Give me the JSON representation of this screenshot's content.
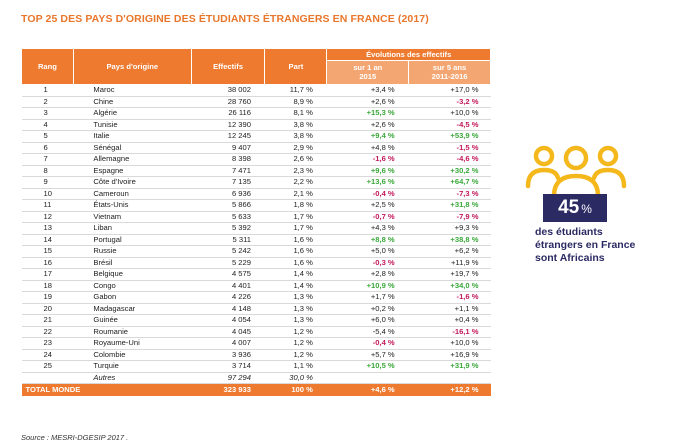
{
  "title": "TOP 25 DES PAYS D'ORIGINE DES ÉTUDIANTS ÉTRANGERS EN FRANCE (2017)",
  "headers": {
    "rang": "Rang",
    "pays": "Pays d'origine",
    "effectifs": "Effectifs",
    "part": "Part",
    "evolutions": "Évolutions des effectifs",
    "ev1_l1": "sur 1 an",
    "ev1_l2": "2015",
    "ev5_l1": "sur 5 ans",
    "ev5_l2": "2011-2016"
  },
  "rows": [
    {
      "rang": "1",
      "pays": "Maroc",
      "effectifs": "38 002",
      "part": "11,7 %",
      "ev1": "+3,4 %",
      "ev1_c": "plain",
      "ev5": "+17,0 %",
      "ev5_c": "plain"
    },
    {
      "rang": "2",
      "pays": "Chine",
      "effectifs": "28 760",
      "part": "8,9 %",
      "ev1": "+2,6 %",
      "ev1_c": "plain",
      "ev5": "-3,2 %",
      "ev5_c": "red"
    },
    {
      "rang": "3",
      "pays": "Algérie",
      "effectifs": "26 116",
      "part": "8,1 %",
      "ev1": "+15,3 %",
      "ev1_c": "green",
      "ev5": "+10,0 %",
      "ev5_c": "plain"
    },
    {
      "rang": "4",
      "pays": "Tunisie",
      "effectifs": "12 390",
      "part": "3,8 %",
      "ev1": "+2,6 %",
      "ev1_c": "plain",
      "ev5": "-4,5 %",
      "ev5_c": "red"
    },
    {
      "rang": "5",
      "pays": "Italie",
      "effectifs": "12 245",
      "part": "3,8 %",
      "ev1": "+9,4 %",
      "ev1_c": "green",
      "ev5": "+53,9 %",
      "ev5_c": "green"
    },
    {
      "rang": "6",
      "pays": "Sénégal",
      "effectifs": "9 407",
      "part": "2,9 %",
      "ev1": "+4,8 %",
      "ev1_c": "plain",
      "ev5": "-1,5 %",
      "ev5_c": "red"
    },
    {
      "rang": "7",
      "pays": "Allemagne",
      "effectifs": "8 398",
      "part": "2,6 %",
      "ev1": "-1,6 %",
      "ev1_c": "red",
      "ev5": "-4,6 %",
      "ev5_c": "red"
    },
    {
      "rang": "8",
      "pays": "Espagne",
      "effectifs": "7 471",
      "part": "2,3 %",
      "ev1": "+9,6 %",
      "ev1_c": "green",
      "ev5": "+30,2 %",
      "ev5_c": "green"
    },
    {
      "rang": "9",
      "pays": "Côte d'Ivoire",
      "effectifs": "7 135",
      "part": "2,2 %",
      "ev1": "+13,6 %",
      "ev1_c": "green",
      "ev5": "+64,7 %",
      "ev5_c": "green"
    },
    {
      "rang": "10",
      "pays": "Cameroun",
      "effectifs": "6 936",
      "part": "2,1 %",
      "ev1": "-0,4 %",
      "ev1_c": "red",
      "ev5": "-7,3 %",
      "ev5_c": "red"
    },
    {
      "rang": "11",
      "pays": "États-Unis",
      "effectifs": "5 866",
      "part": "1,8 %",
      "ev1": "+2,5 %",
      "ev1_c": "plain",
      "ev5": "+31,8 %",
      "ev5_c": "green"
    },
    {
      "rang": "12",
      "pays": "Vietnam",
      "effectifs": "5 633",
      "part": "1,7 %",
      "ev1": "-0,7 %",
      "ev1_c": "red",
      "ev5": "-7,9 %",
      "ev5_c": "red"
    },
    {
      "rang": "13",
      "pays": "Liban",
      "effectifs": "5 392",
      "part": "1,7 %",
      "ev1": "+4,3 %",
      "ev1_c": "plain",
      "ev5": "+9,3 %",
      "ev5_c": "plain"
    },
    {
      "rang": "14",
      "pays": "Portugal",
      "effectifs": "5 311",
      "part": "1,6 %",
      "ev1": "+8,8 %",
      "ev1_c": "green",
      "ev5": "+38,8 %",
      "ev5_c": "green"
    },
    {
      "rang": "15",
      "pays": "Russie",
      "effectifs": "5 242",
      "part": "1,6 %",
      "ev1": "+5,0 %",
      "ev1_c": "plain",
      "ev5": "+6,2 %",
      "ev5_c": "plain"
    },
    {
      "rang": "16",
      "pays": "Brésil",
      "effectifs": "5 229",
      "part": "1,6 %",
      "ev1": "-0,3 %",
      "ev1_c": "red",
      "ev5": "+11,9 %",
      "ev5_c": "plain"
    },
    {
      "rang": "17",
      "pays": "Belgique",
      "effectifs": "4 575",
      "part": "1,4 %",
      "ev1": "+2,8 %",
      "ev1_c": "plain",
      "ev5": "+19,7 %",
      "ev5_c": "plain"
    },
    {
      "rang": "18",
      "pays": "Congo",
      "effectifs": "4 401",
      "part": "1,4 %",
      "ev1": "+10,9 %",
      "ev1_c": "green",
      "ev5": "+34,0 %",
      "ev5_c": "green"
    },
    {
      "rang": "19",
      "pays": "Gabon",
      "effectifs": "4 226",
      "part": "1,3 %",
      "ev1": "+1,7 %",
      "ev1_c": "plain",
      "ev5": "-1,6 %",
      "ev5_c": "red"
    },
    {
      "rang": "20",
      "pays": "Madagascar",
      "effectifs": "4 148",
      "part": "1,3 %",
      "ev1": "+0,2 %",
      "ev1_c": "plain",
      "ev5": "+1,1 %",
      "ev5_c": "plain"
    },
    {
      "rang": "21",
      "pays": "Guinée",
      "effectifs": "4 054",
      "part": "1,3 %",
      "ev1": "+6,0 %",
      "ev1_c": "plain",
      "ev5": "+0,4 %",
      "ev5_c": "plain"
    },
    {
      "rang": "22",
      "pays": "Roumanie",
      "effectifs": "4 045",
      "part": "1,2 %",
      "ev1": "-5,4 %",
      "ev1_c": "plain",
      "ev5": "-16,1 %",
      "ev5_c": "red"
    },
    {
      "rang": "23",
      "pays": "Royaume-Uni",
      "effectifs": "4 007",
      "part": "1,2 %",
      "ev1": "-0,4 %",
      "ev1_c": "red",
      "ev5": "+10,0 %",
      "ev5_c": "plain"
    },
    {
      "rang": "24",
      "pays": "Colombie",
      "effectifs": "3 936",
      "part": "1,2 %",
      "ev1": "+5,7 %",
      "ev1_c": "plain",
      "ev5": "+16,9 %",
      "ev5_c": "plain"
    },
    {
      "rang": "25",
      "pays": "Turquie",
      "effectifs": "3 714",
      "part": "1,1 %",
      "ev1": "+10,5 %",
      "ev1_c": "green",
      "ev5": "+31,9 %",
      "ev5_c": "green"
    }
  ],
  "autres": {
    "label": "Autres",
    "effectifs": "97 294",
    "part": "30,0 %"
  },
  "total": {
    "label": "TOTAL MONDE",
    "effectifs": "323 933",
    "part": "100 %",
    "ev1": "+4,6 %",
    "ev5": "+12,2 %"
  },
  "source": "Source : MESRI-DGESIP 2017 .",
  "highlight": {
    "value": "45",
    "unit": "%",
    "line1": "des étudiants",
    "line2": "étrangers en France",
    "line3": "sont Africains"
  },
  "colors": {
    "accent": "#ee7a30",
    "accent_light": "#f4a672",
    "navy": "#2b2a63",
    "icon": "#f4b81c",
    "positive": "#3aa83a",
    "negative": "#c2185b"
  },
  "icon": "people-group-icon"
}
